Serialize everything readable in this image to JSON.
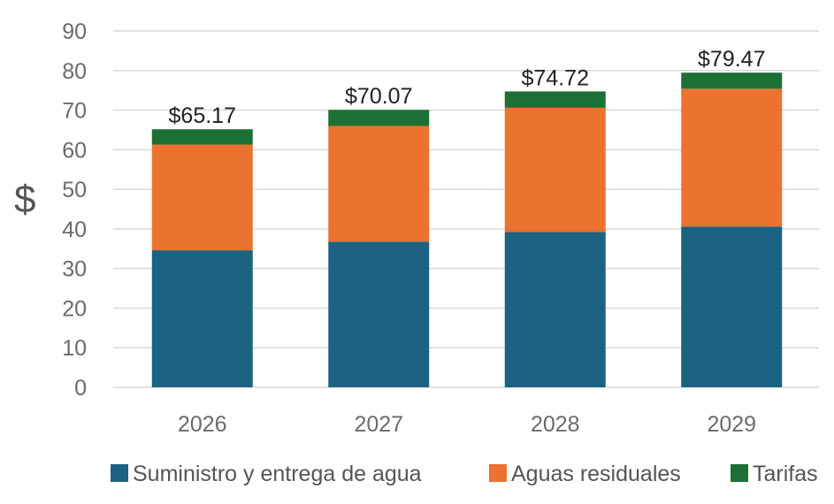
{
  "chart_data": {
    "type": "bar",
    "stacked": true,
    "categories": [
      "2026",
      "2027",
      "2028",
      "2029"
    ],
    "series": [
      {
        "name": "Suministro y entrega de agua",
        "color": "#1b6283",
        "values": [
          34.6,
          36.8,
          39.2,
          40.6
        ]
      },
      {
        "name": "Aguas residuales",
        "color": "#ec7230",
        "values": [
          26.7,
          29.2,
          31.4,
          34.8
        ]
      },
      {
        "name": "Tarifas",
        "color": "#1d7035",
        "values": [
          3.87,
          4.07,
          4.12,
          4.07
        ]
      }
    ],
    "totals": [
      "$65.17",
      "$70.07",
      "$74.72",
      "$79.47"
    ],
    "ylabel": "$",
    "ylim": [
      0,
      90
    ],
    "yticks": [
      0,
      10,
      20,
      30,
      40,
      50,
      60,
      70,
      80,
      90
    ],
    "grid": true,
    "legend_position": "bottom"
  }
}
